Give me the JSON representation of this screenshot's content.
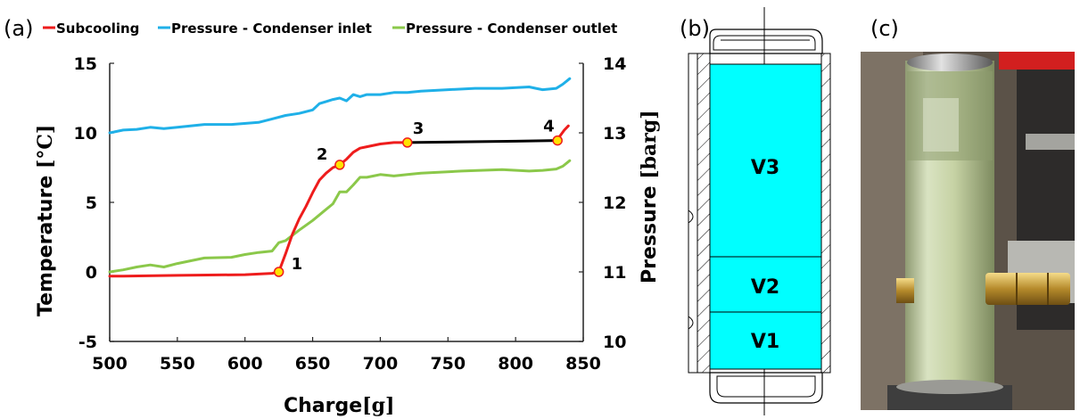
{
  "panels": {
    "a": "(a)",
    "b": "(b)",
    "c": "(c)"
  },
  "colors": {
    "subcooling": "#ee1c1c",
    "inlet": "#1fb0e8",
    "outlet": "#8bc84a",
    "plateau": "#000000",
    "marker_fill": "#ffe300",
    "marker_stroke": "#ee1c1c",
    "volume_fill": "#00ffff"
  },
  "chart_data": {
    "type": "line",
    "xlabel": "Charge",
    "xlabel_unit": "[g]",
    "ylabel": "Temperature",
    "ylabel_unit": "[°C]",
    "y2label": "Pressure",
    "y2label_unit": "[barg]",
    "xlim": [
      500,
      850
    ],
    "ylim": [
      -5,
      15
    ],
    "y2lim": [
      10,
      14
    ],
    "xticks": [
      500,
      550,
      600,
      650,
      700,
      750,
      800,
      850
    ],
    "yticks": [
      -5,
      0,
      5,
      10,
      15
    ],
    "y2ticks": [
      10,
      11,
      12,
      13,
      14
    ],
    "legend_position": "top",
    "series": [
      {
        "name": "Subcooling",
        "axis": "left",
        "color": "#ee1c1c",
        "x": [
          500,
          510,
          550,
          600,
          620,
          625,
          630,
          635,
          640,
          645,
          650,
          655,
          660,
          665,
          670,
          675,
          680,
          685,
          690,
          700,
          710,
          720
        ],
        "y": [
          -0.3,
          -0.3,
          -0.25,
          -0.2,
          -0.1,
          0.0,
          1.3,
          2.7,
          3.8,
          4.7,
          5.7,
          6.6,
          7.1,
          7.5,
          7.7,
          8.1,
          8.6,
          8.9,
          9.0,
          9.2,
          9.3,
          9.3
        ]
      },
      {
        "name": "",
        "axis": "left",
        "color": "#000000",
        "x": [
          720,
          760,
          800,
          830
        ],
        "y": [
          9.3,
          9.35,
          9.4,
          9.45
        ]
      },
      {
        "name": "",
        "axis": "left",
        "color": "#ee1c1c",
        "x": [
          830,
          833,
          836,
          839
        ],
        "y": [
          9.45,
          9.8,
          10.2,
          10.5
        ]
      },
      {
        "name": "Pressure - Condenser inlet",
        "axis": "right",
        "color": "#1fb0e8",
        "x": [
          500,
          510,
          520,
          530,
          540,
          550,
          570,
          590,
          610,
          620,
          630,
          640,
          650,
          655,
          660,
          665,
          670,
          675,
          680,
          685,
          690,
          700,
          710,
          720,
          730,
          750,
          770,
          790,
          810,
          815,
          820,
          830,
          835,
          840
        ],
        "y": [
          13.0,
          13.04,
          13.05,
          13.08,
          13.06,
          13.08,
          13.12,
          13.12,
          13.15,
          13.2,
          13.25,
          13.28,
          13.33,
          13.42,
          13.45,
          13.48,
          13.5,
          13.46,
          13.55,
          13.52,
          13.55,
          13.55,
          13.58,
          13.58,
          13.6,
          13.62,
          13.64,
          13.64,
          13.66,
          13.64,
          13.62,
          13.64,
          13.7,
          13.78
        ]
      },
      {
        "name": "Pressure - Condenser outlet",
        "axis": "right",
        "color": "#8bc84a",
        "x": [
          500,
          510,
          520,
          530,
          540,
          550,
          560,
          570,
          590,
          600,
          610,
          620,
          625,
          630,
          640,
          650,
          660,
          665,
          670,
          675,
          680,
          685,
          690,
          695,
          700,
          710,
          720,
          730,
          760,
          790,
          810,
          820,
          830,
          835,
          840
        ],
        "y": [
          11.0,
          11.03,
          11.07,
          11.1,
          11.07,
          11.12,
          11.16,
          11.2,
          11.21,
          11.25,
          11.28,
          11.3,
          11.42,
          11.45,
          11.6,
          11.74,
          11.9,
          11.98,
          12.15,
          12.15,
          12.25,
          12.36,
          12.36,
          12.38,
          12.4,
          12.38,
          12.4,
          12.42,
          12.45,
          12.47,
          12.45,
          12.46,
          12.48,
          12.52,
          12.6
        ]
      }
    ],
    "points": [
      {
        "label": "1",
        "x": 625,
        "y": 0.0
      },
      {
        "label": "2",
        "x": 670,
        "y": 7.7
      },
      {
        "label": "3",
        "x": 720,
        "y": 9.3
      },
      {
        "label": "4",
        "x": 831,
        "y": 9.45
      }
    ]
  },
  "diagram": {
    "volumes": [
      "V3",
      "V2",
      "V1"
    ]
  },
  "photo": {
    "description_icon": "photo-receiver-icon"
  }
}
